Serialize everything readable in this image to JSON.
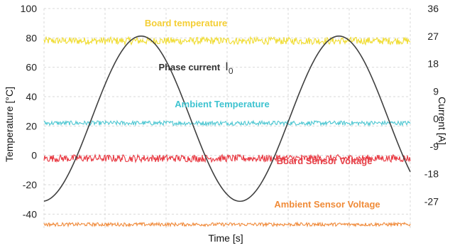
{
  "chart_data": {
    "type": "line",
    "title": "",
    "xlabel": "Time [s]",
    "ylabel_left": "Temperature [°C]",
    "ylabel_right": "Current [A]",
    "ylim_left": [
      -50,
      100
    ],
    "ylim_right": [
      -36,
      36
    ],
    "left_ticks": [
      "100",
      "80",
      "60",
      "40",
      "20",
      "0",
      "-20",
      "-40"
    ],
    "left_tick_values": [
      100,
      80,
      60,
      40,
      20,
      0,
      -20,
      -40
    ],
    "right_ticks": [
      "36",
      "27",
      "18",
      "9",
      "0",
      "-9",
      "-18",
      "-27"
    ],
    "right_tick_values": [
      36,
      27,
      18,
      9,
      0,
      -9,
      -18,
      -27
    ],
    "grid": true,
    "series": [
      {
        "name": "Board temperature",
        "axis": "left",
        "level": 78,
        "noise": 2.5,
        "color": "#f0dc32",
        "label_color": "#f4ce34"
      },
      {
        "name": "Ambient Temperature",
        "axis": "left",
        "level": 22,
        "noise": 1.5,
        "color": "#4fc7d2",
        "label_color": "#3ec3d0"
      },
      {
        "name": "Board Sensor Voltage",
        "axis": "left",
        "level": -2,
        "noise": 2.5,
        "color": "#e8363f",
        "label_color": "#e64048"
      },
      {
        "name": "Ambient Sensor Voltage",
        "axis": "left",
        "level": -47,
        "noise": 1.2,
        "color": "#f08a3a",
        "label_color": "#f08b38"
      },
      {
        "name": "Phase current",
        "subscript": "0",
        "axis": "right",
        "type": "sine",
        "amplitude": 27,
        "period_fraction": 0.54,
        "x_at_crest_fraction": 0.265,
        "color": "#404040",
        "label_color": "#333333"
      }
    ]
  }
}
